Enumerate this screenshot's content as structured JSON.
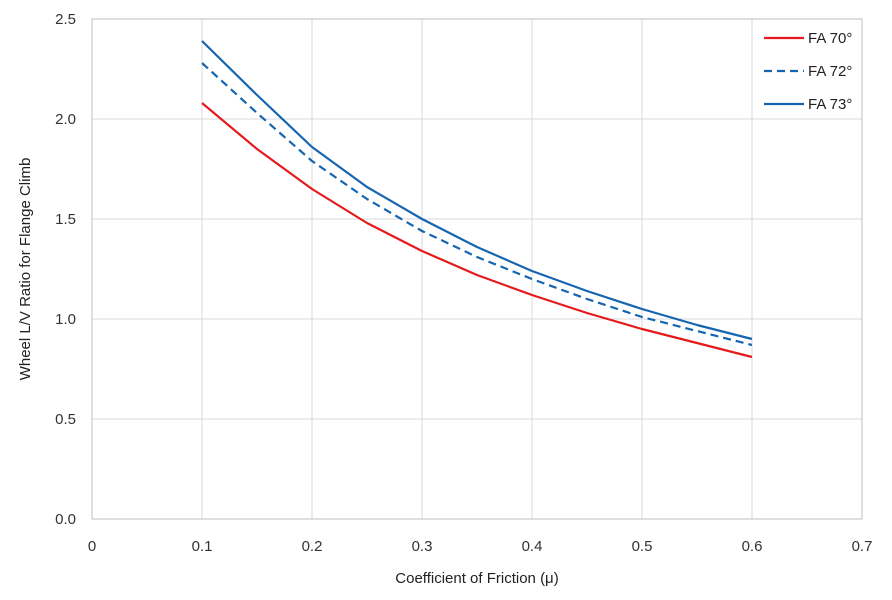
{
  "chart_data": {
    "type": "line",
    "title": "",
    "xlabel": "Coefficient of Friction (μ)",
    "ylabel": "Wheel L/V Ratio for Flange Climb",
    "xlim": [
      0,
      0.7
    ],
    "ylim": [
      0,
      2.5
    ],
    "x_ticks": [
      "0",
      "0.1",
      "0.2",
      "0.3",
      "0.4",
      "0.5",
      "0.6",
      "0.7"
    ],
    "y_ticks": [
      "0.0",
      "0.5",
      "1.0",
      "1.5",
      "2.0",
      "2.5"
    ],
    "grid": true,
    "legend_position": "top-right",
    "series": [
      {
        "name": "FA 70°",
        "color": "#e41a1c",
        "dash": "solid",
        "x": [
          0.1,
          0.15,
          0.2,
          0.25,
          0.3,
          0.35,
          0.4,
          0.45,
          0.5,
          0.55,
          0.6
        ],
        "values": [
          2.08,
          1.85,
          1.65,
          1.48,
          1.34,
          1.22,
          1.12,
          1.03,
          0.95,
          0.88,
          0.81
        ]
      },
      {
        "name": "FA 72°",
        "color": "#1565b0",
        "dash": "dashed",
        "x": [
          0.1,
          0.15,
          0.2,
          0.25,
          0.3,
          0.35,
          0.4,
          0.45,
          0.5,
          0.55,
          0.6
        ],
        "values": [
          2.28,
          2.03,
          1.79,
          1.6,
          1.44,
          1.31,
          1.2,
          1.1,
          1.01,
          0.94,
          0.87
        ]
      },
      {
        "name": "FA 73°",
        "color": "#1565b0",
        "dash": "solid",
        "x": [
          0.1,
          0.15,
          0.2,
          0.25,
          0.3,
          0.35,
          0.4,
          0.45,
          0.5,
          0.55,
          0.6
        ],
        "values": [
          2.39,
          2.12,
          1.86,
          1.66,
          1.5,
          1.36,
          1.24,
          1.14,
          1.05,
          0.97,
          0.9
        ]
      }
    ]
  }
}
